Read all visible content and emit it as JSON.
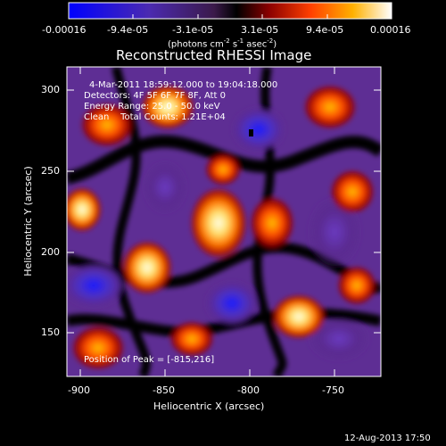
{
  "colorbar": {
    "ticks": [
      "-0.00016",
      "-9.4e-05",
      "-3.1e-05",
      "3.1e-05",
      "9.4e-05",
      "0.00016"
    ],
    "units_main": "(photons cm",
    "units_exp1": "-2",
    "units_mid": " s",
    "units_exp2": "-1",
    "units_end": " asec",
    "units_exp3": "-2",
    "units_close": ")"
  },
  "title": "Reconstructed RHESSI Image",
  "annotations": {
    "time": "4-Mar-2011 18:59:12.000 to 19:04:18.000",
    "detectors": "Detectors: 4F 5F 6F 7F 8F, Att 0",
    "energy": "Energy Range: 25.0 - 50.0 keV",
    "clean": "Clean    Total Counts: 1.21E+04",
    "peak": "Position of Peak = [-815,216]"
  },
  "axes": {
    "xlabel": "Heliocentric X (arcsec)",
    "ylabel": "Heliocentric Y (arcsec)",
    "xticks": [
      "-900",
      "-850",
      "-800",
      "-750"
    ],
    "yticks": [
      "300",
      "250",
      "200",
      "150"
    ]
  },
  "footer": "12-Aug-2013 17:50",
  "colors": {
    "background": "#000000",
    "text": "#ffffff"
  }
}
